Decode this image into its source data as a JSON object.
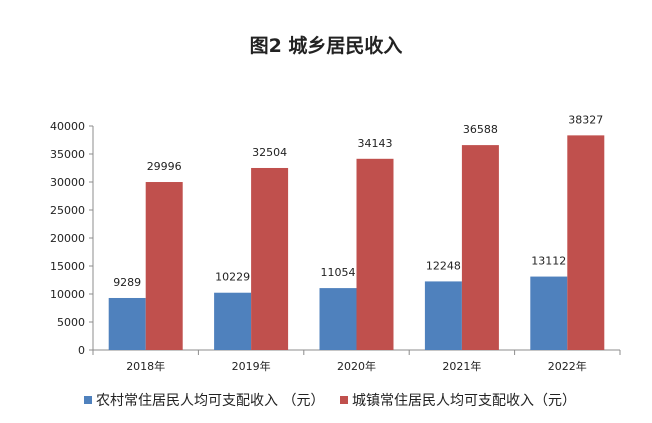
{
  "chart_data": {
    "type": "bar",
    "title": "图2  城乡居民收入",
    "categories": [
      "2018年",
      "2019年",
      "2020年",
      "2021年",
      "2022年"
    ],
    "series": [
      {
        "name": "农村常住居民人均可支配收入 （元）",
        "color": "#4f81bd",
        "values": [
          9289,
          10229,
          11054,
          12248,
          13112
        ]
      },
      {
        "name": "城镇常住居民人均可支配收入（元）",
        "color": "#c0504d",
        "values": [
          29996,
          32504,
          34143,
          36588,
          38327
        ]
      }
    ],
    "ylim": [
      0,
      40000
    ],
    "yticks": [
      0,
      5000,
      10000,
      15000,
      20000,
      25000,
      30000,
      35000,
      40000
    ],
    "grid": false,
    "legend_position": "bottom",
    "data_labels": true
  }
}
